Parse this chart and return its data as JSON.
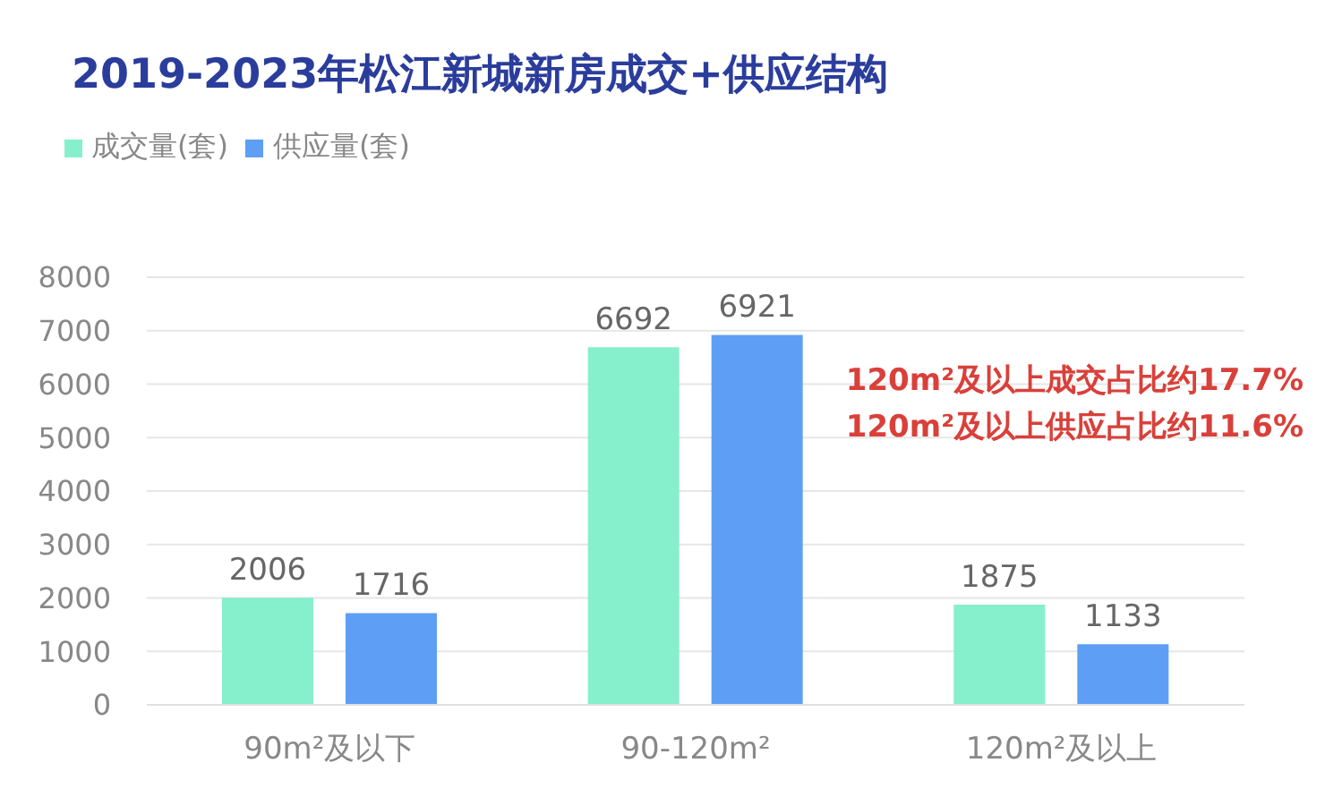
{
  "chart_data": {
    "type": "bar",
    "title": "2019-2023年松江新城新房成交+供应结构",
    "categories": [
      "90m²及以下",
      "90-120m²",
      "120m²及以上"
    ],
    "series": [
      {
        "name": "成交量(套)",
        "color": "#86efcc",
        "values": [
          2006,
          6692,
          1875
        ]
      },
      {
        "name": "供应量(套)",
        "color": "#5e9ff5",
        "values": [
          1716,
          6921,
          1133
        ]
      }
    ],
    "ylim": [
      0,
      8000
    ],
    "yticks": [
      0,
      1000,
      2000,
      3000,
      4000,
      5000,
      6000,
      7000,
      8000
    ],
    "grid": "y",
    "legend": "top left",
    "data_labels": true,
    "annotations": [
      "120m²及以上成交占比约17.7%",
      "120m²及以上供应占比约11.6%"
    ]
  }
}
